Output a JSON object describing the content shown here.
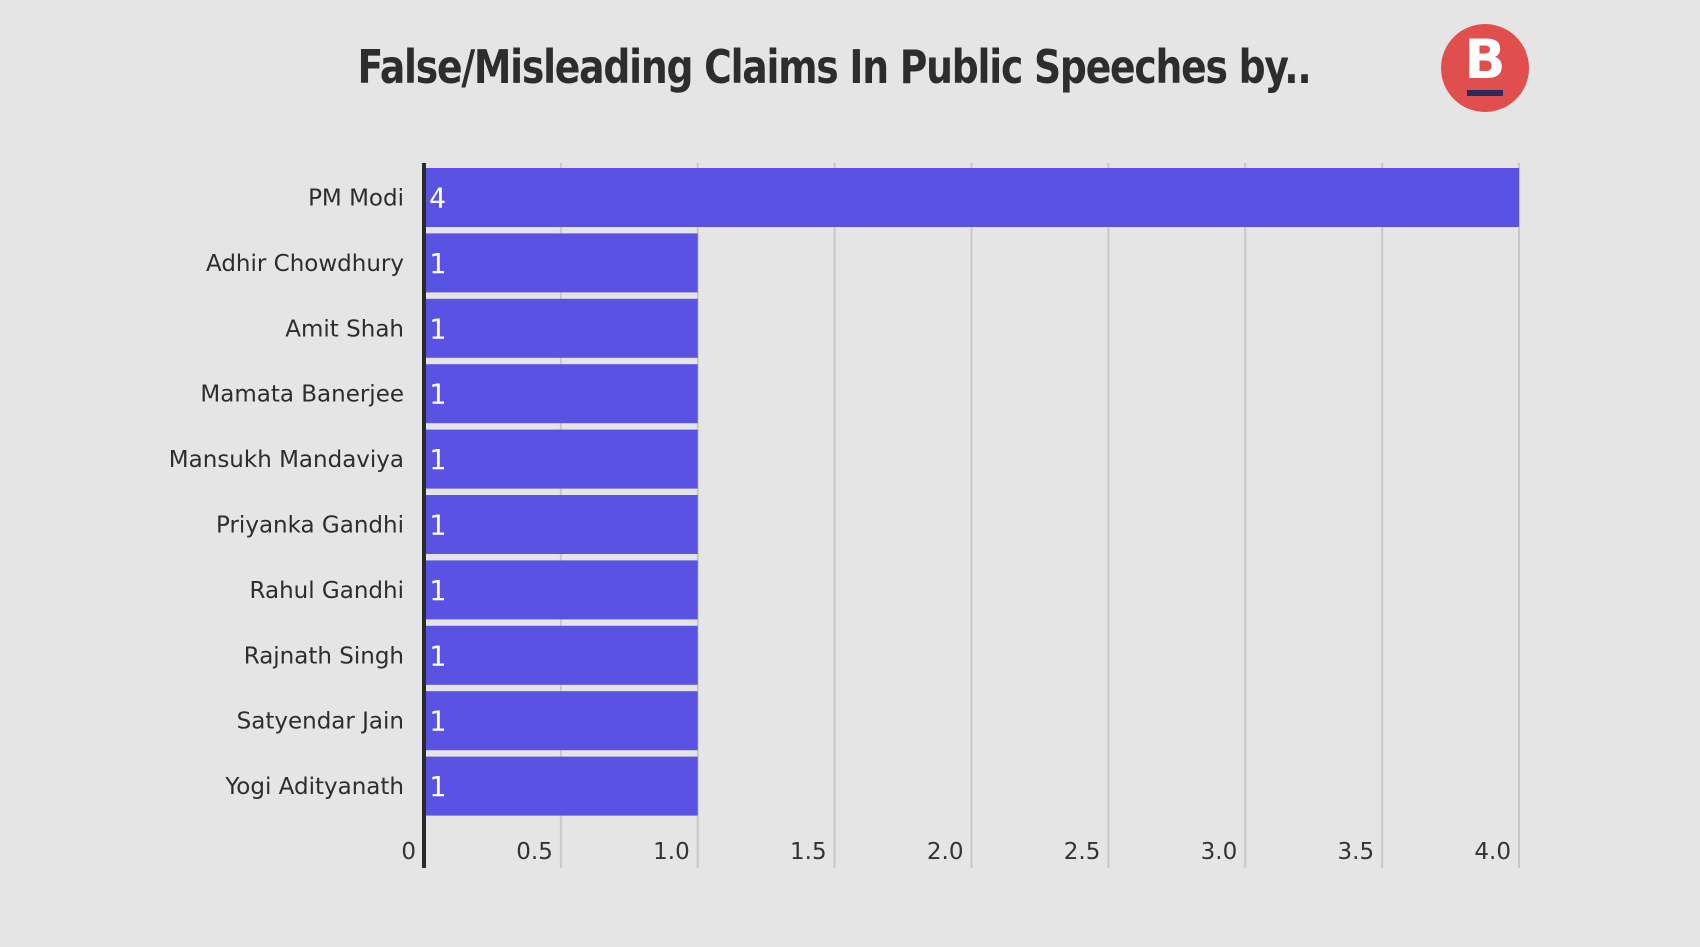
{
  "header": {
    "title": "False/Misleading Claims In Public Speeches by..",
    "logo_letter": "B"
  },
  "colors": {
    "background": "#e6e5e6",
    "bar": "#5a52e3",
    "grid": "#c9c8c9",
    "axis": "#2b2b2b",
    "logo": "#e04e4e"
  },
  "chart_data": {
    "type": "bar",
    "orientation": "horizontal",
    "title": "False/Misleading Claims In Public Speeches by..",
    "categories": [
      "PM Modi",
      "Adhir Chowdhury",
      "Amit Shah",
      "Mamata Banerjee",
      "Mansukh Mandaviya",
      "Priyanka Gandhi",
      "Rahul Gandhi",
      "Rajnath Singh",
      "Satyendar Jain",
      "Yogi Adityanath"
    ],
    "values": [
      4,
      1,
      1,
      1,
      1,
      1,
      1,
      1,
      1,
      1
    ],
    "data_labels": [
      "4",
      "1",
      "1",
      "1",
      "1",
      "1",
      "1",
      "1",
      "1",
      "1"
    ],
    "xlim": [
      0,
      4.0
    ],
    "ticks": [
      0,
      0.5,
      1.0,
      1.5,
      2.0,
      2.5,
      3.0,
      3.5,
      4.0
    ],
    "tick_labels": [
      "0",
      "0.5",
      "1.0",
      "1.5",
      "2.0",
      "2.5",
      "3.0",
      "3.5",
      "4.0"
    ],
    "xlabel": "",
    "ylabel": "",
    "grid": true,
    "legend": "none"
  }
}
